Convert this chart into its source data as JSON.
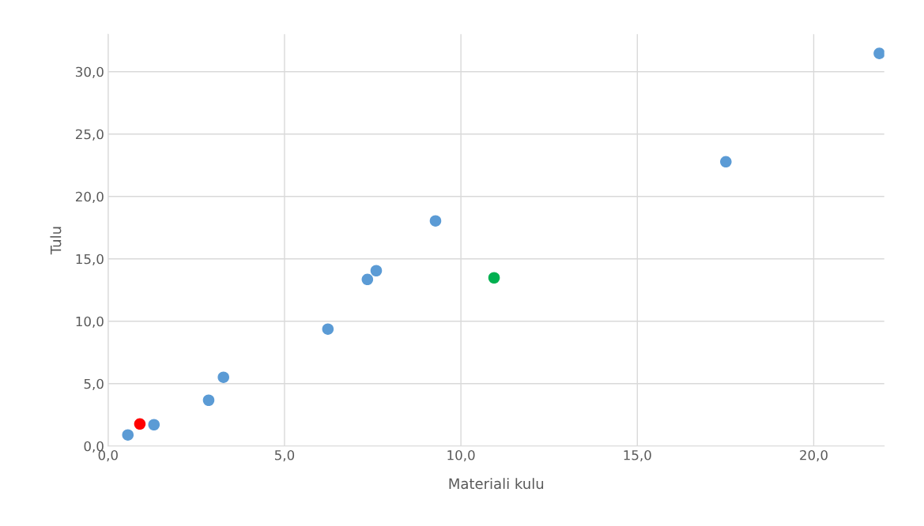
{
  "chart_data": {
    "type": "scatter",
    "xlabel": "Materiali kulu",
    "ylabel": "Tulu",
    "series": [
      {
        "color": "#5b9bd5",
        "x": [
          0.56,
          1.3,
          2.85,
          3.27,
          6.23,
          7.35,
          7.6,
          9.28,
          17.51,
          21.86
        ],
        "values": [
          0.89,
          1.71,
          3.67,
          5.51,
          9.37,
          13.35,
          14.05,
          18.04,
          22.78,
          31.46
        ]
      },
      {
        "color": "#ff0000",
        "x": [
          0.9
        ],
        "values": [
          1.77
        ]
      },
      {
        "color": "#00b050",
        "x": [
          10.94
        ],
        "values": [
          13.48
        ]
      }
    ],
    "xlim": [
      0,
      22
    ],
    "ylim": [
      0,
      33
    ],
    "xticks": [
      {
        "value": 0,
        "label": "0,0"
      },
      {
        "value": 5,
        "label": "5,0"
      },
      {
        "value": 10,
        "label": "10,0"
      },
      {
        "value": 15,
        "label": "15,0"
      },
      {
        "value": 20,
        "label": "20,0"
      }
    ],
    "yticks": [
      {
        "value": 0,
        "label": "0,0"
      },
      {
        "value": 5,
        "label": "5,0"
      },
      {
        "value": 10,
        "label": "10,0"
      },
      {
        "value": 15,
        "label": "15,0"
      },
      {
        "value": 20,
        "label": "20,0"
      },
      {
        "value": 25,
        "label": "25,0"
      },
      {
        "value": 30,
        "label": "30,0"
      }
    ],
    "grid": true,
    "marker": "circle",
    "legend": false
  }
}
